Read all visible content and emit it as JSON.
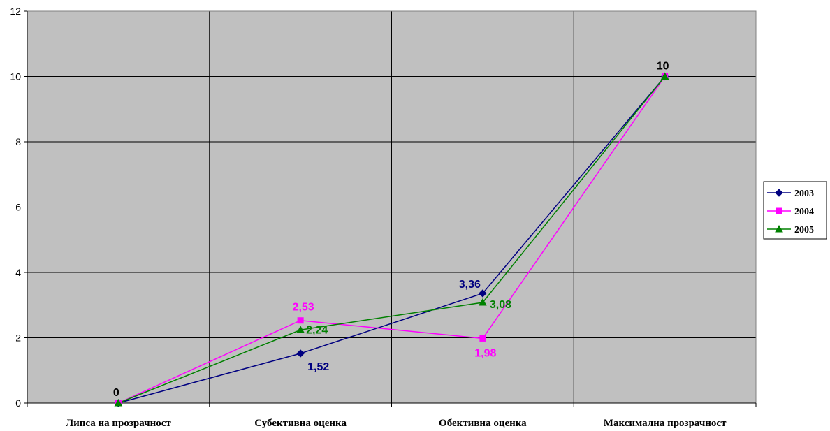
{
  "chart_data": {
    "type": "line",
    "categories": [
      "Липса на прозрачност",
      "Субективна оценка",
      "Обективна оценка",
      "Максимална прозрачност"
    ],
    "ylim": [
      0,
      12
    ],
    "yticks": [
      0,
      2,
      4,
      6,
      8,
      10,
      12
    ],
    "grid": true,
    "legend": "right",
    "series": [
      {
        "name": "2003",
        "values": [
          0,
          1.52,
          3.36,
          10
        ],
        "color": "#000080",
        "marker": "diamond",
        "labels": [
          null,
          "1,52",
          "3,36",
          null
        ]
      },
      {
        "name": "2004",
        "values": [
          0,
          2.53,
          1.98,
          10
        ],
        "color": "#ff00ff",
        "marker": "square",
        "labels": [
          null,
          "2,53",
          "1,98",
          null
        ]
      },
      {
        "name": "2005",
        "values": [
          0,
          2.24,
          3.08,
          10
        ],
        "color": "#008000",
        "marker": "triangle",
        "labels": [
          null,
          "2,24",
          "3,08",
          null
        ]
      }
    ],
    "common_labels": [
      {
        "category_index": 0,
        "value": 0,
        "text": "0",
        "color": "#000000"
      },
      {
        "category_index": 3,
        "value": 10,
        "text": "10",
        "color": "#000000"
      }
    ],
    "plot_background": "#c0c0c0",
    "gridline_color": "#000000"
  }
}
